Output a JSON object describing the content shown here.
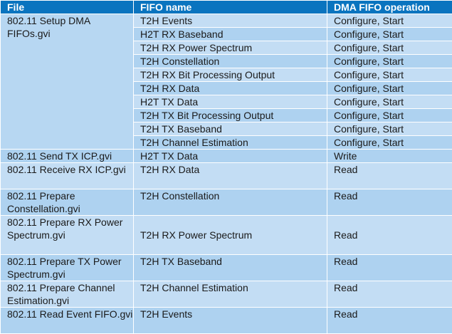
{
  "headers": [
    "File",
    "FIFO name",
    "DMA FIFO operation"
  ],
  "setup_file": "802.11 Setup DMA FIFOs.gvi",
  "setup_rows": [
    {
      "fifo": "T2H Events",
      "op": "Configure, Start"
    },
    {
      "fifo": "H2T RX Baseband",
      "op": "Configure, Start"
    },
    {
      "fifo": "T2H RX Power Spectrum",
      "op": "Configure, Start"
    },
    {
      "fifo": "T2H Constellation",
      "op": "Configure, Start"
    },
    {
      "fifo": "T2H RX Bit Processing Output",
      "op": "Configure, Start"
    },
    {
      "fifo": "T2H RX Data",
      "op": "Configure, Start"
    },
    {
      "fifo": "H2T TX Data",
      "op": "Configure, Start"
    },
    {
      "fifo": "T2H TX Bit Processing Output",
      "op": "Configure, Start"
    },
    {
      "fifo": "T2H TX Baseband",
      "op": "Configure, Start"
    },
    {
      "fifo": "T2H Channel Estimation",
      "op": "Configure, Start"
    }
  ],
  "other_rows": [
    {
      "file": "802.11 Send TX ICP.gvi",
      "fifo": "H2T TX Data",
      "op": "Write"
    },
    {
      "file": "802.11 Receive RX ICP.gvi",
      "fifo": "T2H RX Data",
      "op": "Read"
    },
    {
      "file": "802.11 Prepare Constellation.gvi",
      "fifo": "T2H Constellation",
      "op": "Read"
    },
    {
      "file": "802.11 Prepare RX Power Spectrum.gvi",
      "fifo": "T2H RX Power Spectrum",
      "op": "Read"
    },
    {
      "file": "802.11 Prepare TX Power Spectrum.gvi",
      "fifo": "T2H TX Baseband",
      "op": "Read"
    },
    {
      "file": "802.11 Prepare Channel Estimation.gvi",
      "fifo": "T2H Channel Estimation",
      "op": "Read"
    },
    {
      "file": "802.11 Read Event FIFO.gvi",
      "fifo": "T2H Events",
      "op": "Read"
    }
  ],
  "colors": {
    "header_bg": "#0a74bf",
    "header_text": "#ffffff",
    "row_bg": "#c3ddf4",
    "row_alt_bg": "#aed2f0"
  }
}
